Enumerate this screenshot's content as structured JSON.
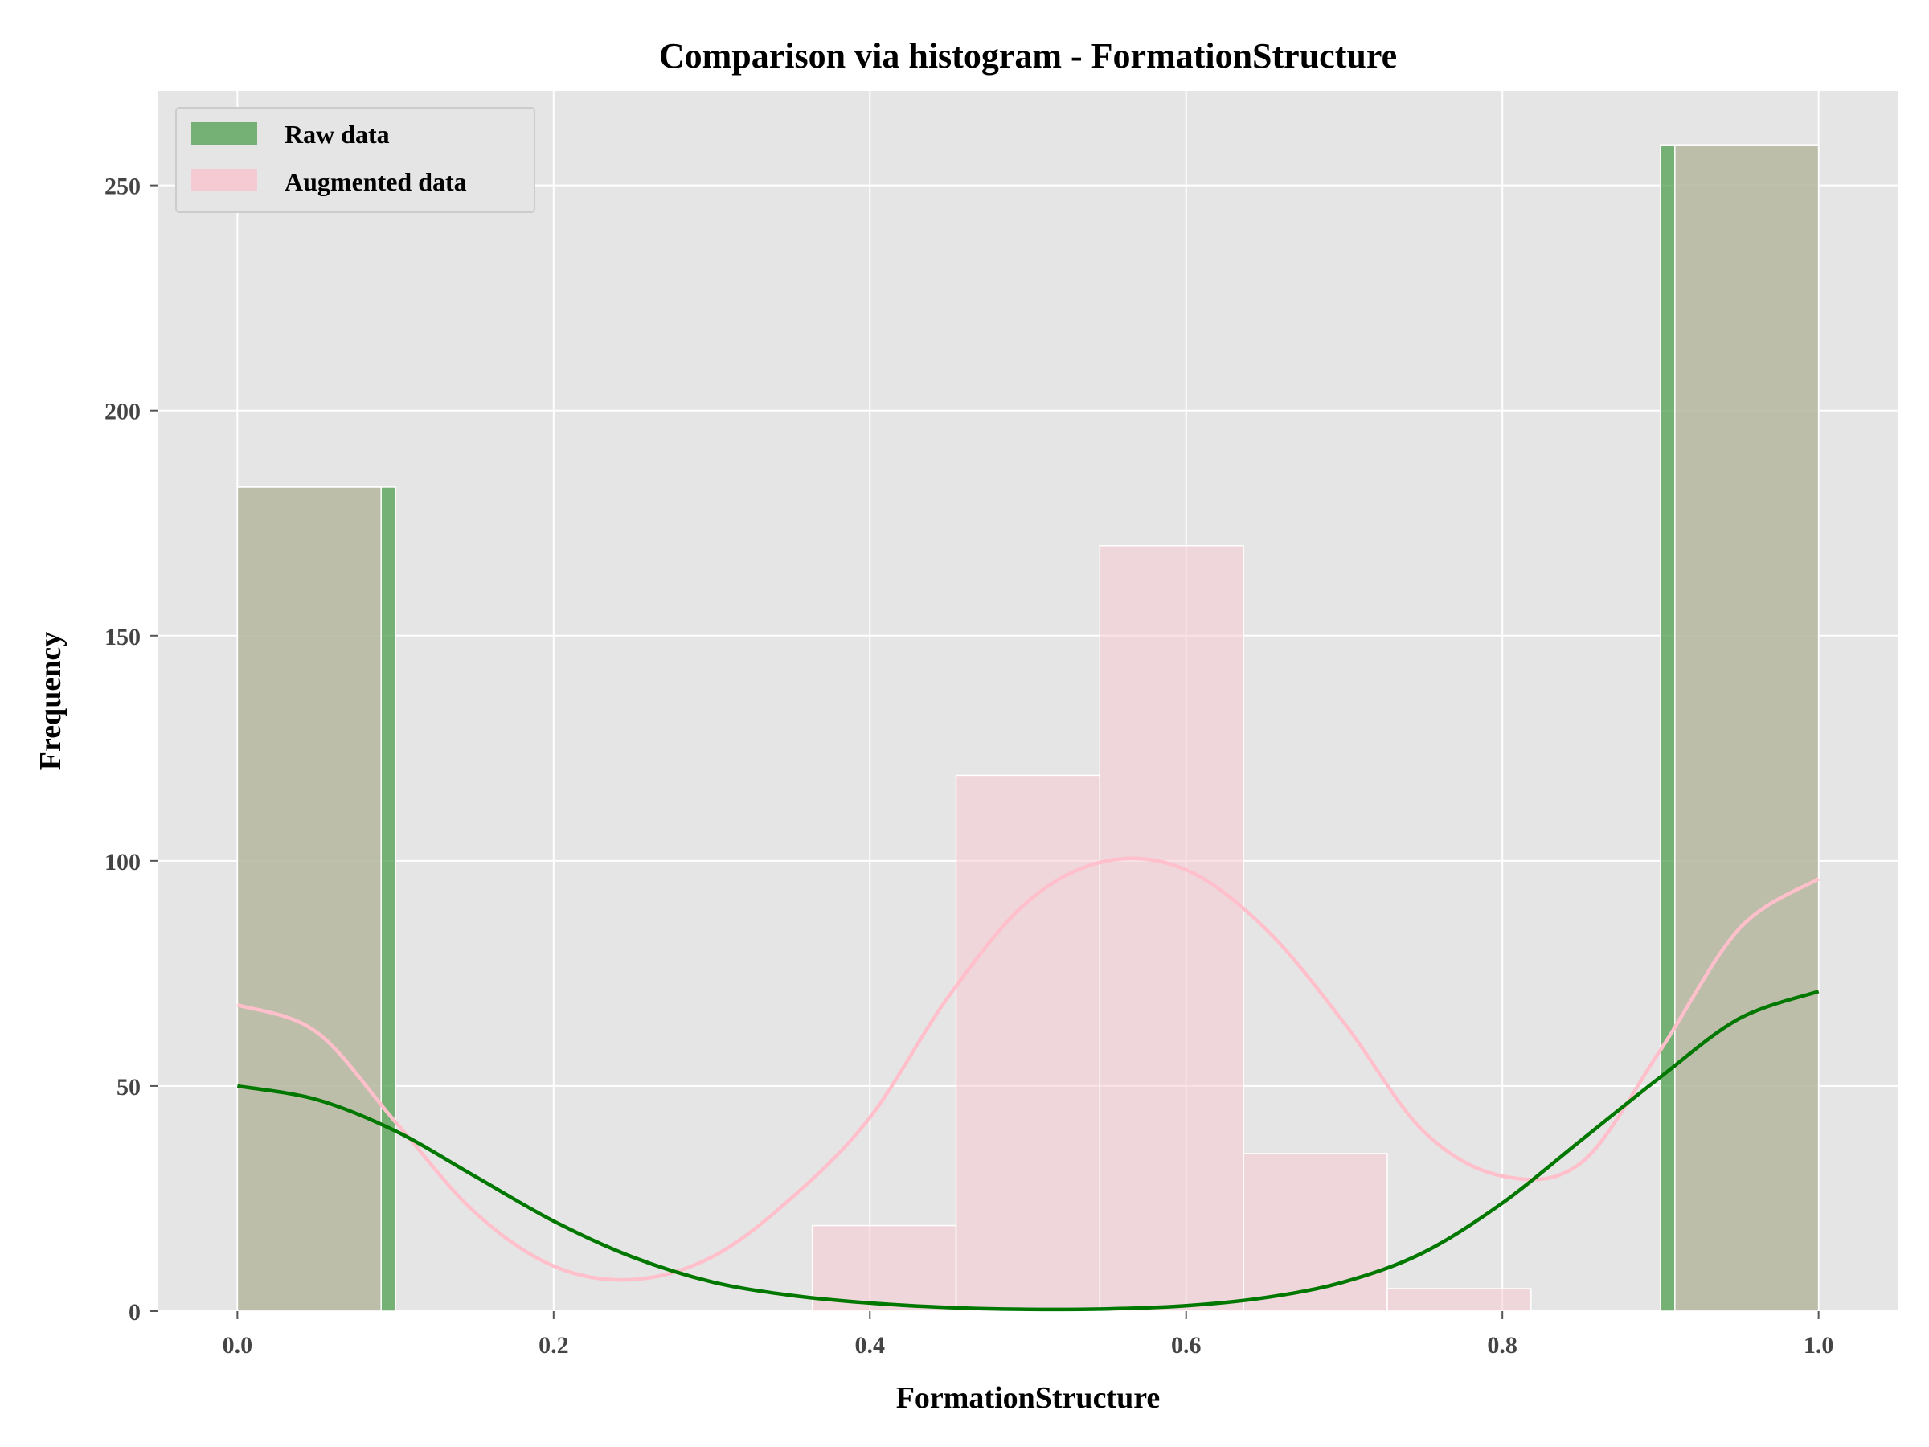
{
  "chart_data": {
    "type": "histogram",
    "title": "Comparison via histogram - FormationStructure",
    "xlabel": "FormationStructure",
    "ylabel": "Frequency",
    "xlim": [
      -0.05,
      1.05
    ],
    "ylim": [
      0,
      271
    ],
    "xticks": [
      0.0,
      0.2,
      0.4,
      0.6,
      0.8,
      1.0
    ],
    "xtick_labels": [
      "0.0",
      "0.2",
      "0.4",
      "0.6",
      "0.8",
      "1.0"
    ],
    "yticks": [
      0,
      50,
      100,
      150,
      200,
      250
    ],
    "ytick_labels": [
      "0",
      "50",
      "100",
      "150",
      "200",
      "250"
    ],
    "grid": true,
    "legend_position": "top-left",
    "colors": {
      "background": "#e5e5e5",
      "raw": "#4f9d4f",
      "augmented": "#f6cad3",
      "raw_kde": "#007800",
      "augmented_kde": "#ffbfcb"
    },
    "series": [
      {
        "name": "Raw data",
        "bins": [
          {
            "x0": 0.0,
            "x1": 0.1,
            "count": 183
          },
          {
            "x0": 0.9,
            "x1": 1.0,
            "count": 259
          }
        ],
        "kde": [
          [
            0.0,
            50
          ],
          [
            0.05,
            47
          ],
          [
            0.1,
            40
          ],
          [
            0.15,
            30
          ],
          [
            0.2,
            20
          ],
          [
            0.25,
            12
          ],
          [
            0.3,
            6.5
          ],
          [
            0.35,
            3.5
          ],
          [
            0.4,
            1.8
          ],
          [
            0.45,
            0.8
          ],
          [
            0.5,
            0.4
          ],
          [
            0.55,
            0.5
          ],
          [
            0.6,
            1.2
          ],
          [
            0.65,
            3
          ],
          [
            0.7,
            6.5
          ],
          [
            0.75,
            13
          ],
          [
            0.8,
            24
          ],
          [
            0.85,
            38
          ],
          [
            0.9,
            52
          ],
          [
            0.95,
            65
          ],
          [
            1.0,
            71
          ]
        ]
      },
      {
        "name": "Augmented data",
        "bins": [
          {
            "x0": 0.0,
            "x1": 0.0909,
            "count": 183
          },
          {
            "x0": 0.3636,
            "x1": 0.4545,
            "count": 19
          },
          {
            "x0": 0.4545,
            "x1": 0.5454,
            "count": 119
          },
          {
            "x0": 0.5454,
            "x1": 0.6363,
            "count": 170
          },
          {
            "x0": 0.6363,
            "x1": 0.7272,
            "count": 35
          },
          {
            "x0": 0.7272,
            "x1": 0.8181,
            "count": 5
          },
          {
            "x0": 0.9091,
            "x1": 1.0,
            "count": 259
          }
        ],
        "kde": [
          [
            0.0,
            68
          ],
          [
            0.05,
            62
          ],
          [
            0.1,
            42
          ],
          [
            0.15,
            22
          ],
          [
            0.2,
            10
          ],
          [
            0.25,
            7
          ],
          [
            0.3,
            12
          ],
          [
            0.35,
            25
          ],
          [
            0.4,
            43
          ],
          [
            0.45,
            70
          ],
          [
            0.5,
            91
          ],
          [
            0.55,
            100
          ],
          [
            0.6,
            98
          ],
          [
            0.65,
            85
          ],
          [
            0.7,
            64
          ],
          [
            0.75,
            40
          ],
          [
            0.8,
            30
          ],
          [
            0.85,
            33
          ],
          [
            0.9,
            58
          ],
          [
            0.95,
            85
          ],
          [
            1.0,
            96
          ]
        ]
      }
    ]
  }
}
